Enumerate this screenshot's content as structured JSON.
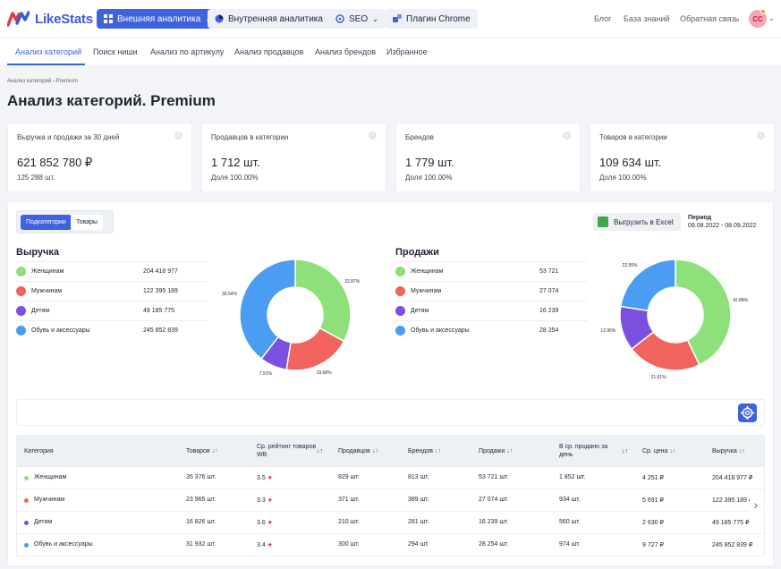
{
  "app": {
    "logo_text": "LikeStats"
  },
  "topnav": {
    "items": [
      {
        "label": "Внешняя аналитика",
        "active": true
      },
      {
        "label": "Внутренняя аналитика",
        "active": false
      },
      {
        "label": "SEO",
        "active": false
      },
      {
        "label": "Плагин Chrome",
        "active": false
      }
    ],
    "links": [
      "Блог",
      "База знаний",
      "Обратная связь"
    ],
    "avatar": "CC"
  },
  "subnav": {
    "tabs": [
      "Анализ категорий",
      "Поиск ниши",
      "Анализ по артикулу",
      "Анализ продавцов",
      "Анализ брендов",
      "Избранное"
    ],
    "active": 0
  },
  "breadcrumb": {
    "root": "Анализ категорий",
    "sep": "›",
    "current": "Premium"
  },
  "page_title": "Анализ категорий. Premium",
  "stat_cards": [
    {
      "title": "Выручка и продажи за 30 дней",
      "value": "621 852 780 ₽",
      "sub": "125 288 шт."
    },
    {
      "title": "Продавцов в категории",
      "value": "1 712 шт.",
      "sub": "Доля 100.00%"
    },
    {
      "title": "Брендов",
      "value": "1 779 шт.",
      "sub": "Доля 100.00%"
    },
    {
      "title": "Товаров в категории",
      "value": "109 634 шт.",
      "sub": "Доля 100.00%"
    }
  ],
  "toggle": {
    "left": "Подкатегории",
    "right": "Товары"
  },
  "excel_label": "Выгрузить в Excel",
  "period": {
    "label": "Период",
    "value": "09.08.2022 - 08.09.2022"
  },
  "colors": {
    "green": "#8ee07a",
    "red": "#f0645d",
    "purple": "#7b4fe0",
    "blue": "#4a9df0",
    "accent": "#3e63dd"
  },
  "chart_data": [
    {
      "type": "pie",
      "title": "Выручка",
      "categories": [
        "Женщинам",
        "Мужчинам",
        "Детям",
        "Обувь и аксессуары"
      ],
      "values": [
        204418977,
        122395189,
        49185775,
        245852839
      ],
      "value_labels": [
        "204 418 977",
        "122 395 189",
        "49 185 775",
        "245 852 839"
      ],
      "percent_labels": [
        "32.87%",
        "19.68%",
        "7.91%",
        "39.54%"
      ],
      "donut": true
    },
    {
      "type": "pie",
      "title": "Продажи",
      "categories": [
        "Женщинам",
        "Мужчинам",
        "Детям",
        "Обувь и аксессуары"
      ],
      "values": [
        53721,
        27074,
        16239,
        28254
      ],
      "value_labels": [
        "53 721",
        "27 074",
        "16 239",
        "28 254"
      ],
      "percent_labels": [
        "42.88%",
        "21.61%",
        "12.96%",
        "22.55%"
      ],
      "donut": true
    }
  ],
  "table": {
    "headers": [
      "Категория",
      "Товаров",
      "Ср. рейтинг товаров WB",
      "Продавцов",
      "Брендов",
      "Продажи",
      "В ср. продано за день",
      "Ср. цена",
      "Выручка"
    ],
    "rows": [
      {
        "name": "Женщинам",
        "goods": "35 376 шт.",
        "rating": "3.5",
        "sellers": "829 шт.",
        "brands": "813 шт.",
        "sales": "53 721 шт.",
        "per_day": "1 852 шт.",
        "price": "4 251 ₽",
        "revenue": "204 418 977 ₽"
      },
      {
        "name": "Мужчинам",
        "goods": "23 965 шт.",
        "rating": "3.3",
        "sellers": "371 шт.",
        "brands": "389 шт.",
        "sales": "27 074 шт.",
        "per_day": "934 шт.",
        "price": "5 691 ₽",
        "revenue": "122 395 189 ₽"
      },
      {
        "name": "Детям",
        "goods": "16 826 шт.",
        "rating": "3.6",
        "sellers": "210 шт.",
        "brands": "281 шт.",
        "sales": "16 239 шт.",
        "per_day": "560 шт.",
        "price": "2 630 ₽",
        "revenue": "49 185 775 ₽"
      },
      {
        "name": "Обувь и аксессуары",
        "goods": "31 932 шт.",
        "rating": "3.4",
        "sellers": "300 шт.",
        "brands": "294 шт.",
        "sales": "28 254 шт.",
        "per_day": "974 шт.",
        "price": "9 727 ₽",
        "revenue": "245 852 839 ₽"
      }
    ]
  }
}
